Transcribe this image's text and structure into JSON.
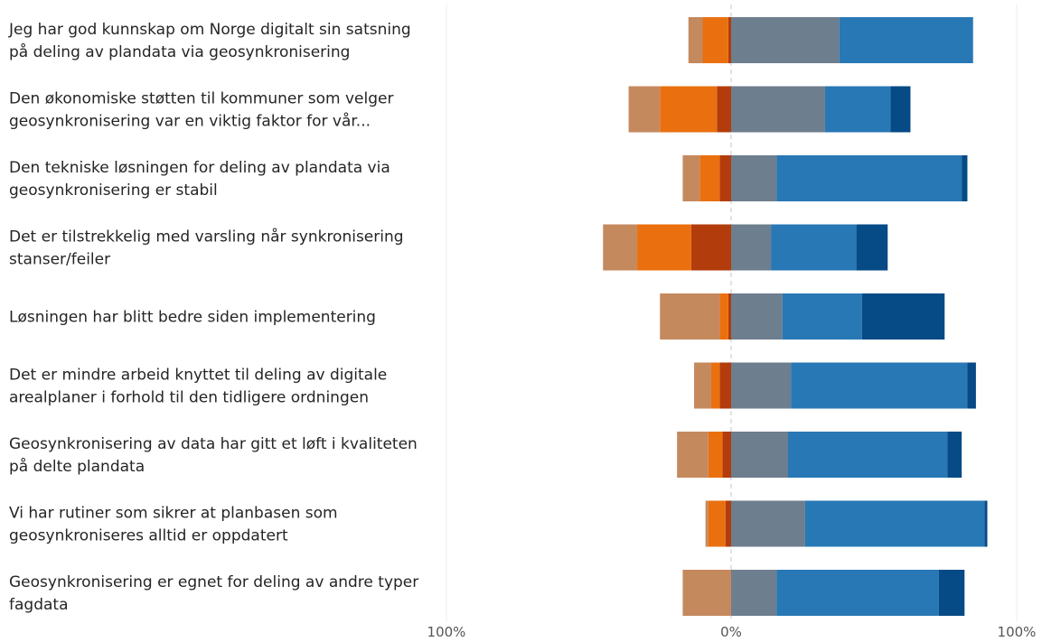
{
  "chart_data": {
    "type": "bar",
    "orientation": "horizontal",
    "stacked": "diverging",
    "title": "",
    "xlabel": "",
    "ylabel": "",
    "xlim": [
      -100,
      100
    ],
    "x_ticks": [
      {
        "value": -100,
        "label": "100%"
      },
      {
        "value": 0,
        "label": "0%"
      },
      {
        "value": 100,
        "label": "100%"
      }
    ],
    "grid": true,
    "legend": "none",
    "categories": [
      [
        "Jeg har god kunnskap om Norge digitalt sin satsning",
        "på deling av plandata via geosynkronisering"
      ],
      [
        "Den økonomiske støtten til kommuner som velger",
        "geosynkronisering var en viktig faktor for vår..."
      ],
      [
        "Den tekniske løsningen for deling av plandata via",
        "geosynkronisering er stabil"
      ],
      [
        "Det er tilstrekkelig med varsling når synkronisering",
        "stanser/feiler"
      ],
      [
        "Løsningen har blitt bedre siden implementering"
      ],
      [
        "Det er mindre arbeid knyttet til deling av digitale",
        "arealplaner i forhold til den tidligere ordningen"
      ],
      [
        "Geosynkronisering av data har gitt et løft i kvaliteten",
        "på delte plandata"
      ],
      [
        "Vi har rutiner som sikrer at planbasen som",
        "geosynkroniseres alltid er oppdatert"
      ],
      [
        "Geosynkronisering er egnet for deling av andre typer",
        "fagdata"
      ]
    ],
    "series": [
      {
        "side": "negative",
        "color": "#b23c0c",
        "values": [
          1,
          5,
          4,
          14,
          1,
          4,
          3,
          2,
          0
        ]
      },
      {
        "side": "negative",
        "color": "#ea700f",
        "values": [
          9,
          20,
          7,
          19,
          3,
          3,
          5,
          6,
          0
        ]
      },
      {
        "side": "negative",
        "color": "#c5895e",
        "values": [
          5,
          11,
          6,
          12,
          21,
          6,
          11,
          1,
          17
        ]
      },
      {
        "side": "positive",
        "color": "#6d7e8e",
        "values": [
          38,
          33,
          16,
          14,
          18,
          21,
          20,
          26,
          16
        ]
      },
      {
        "side": "positive",
        "color": "#2878b5",
        "values": [
          47,
          23,
          65,
          30,
          28,
          62,
          56,
          63,
          57
        ]
      },
      {
        "side": "positive",
        "color": "#064a86",
        "values": [
          0,
          7,
          2,
          11,
          29,
          3,
          5,
          1,
          9
        ]
      }
    ]
  }
}
